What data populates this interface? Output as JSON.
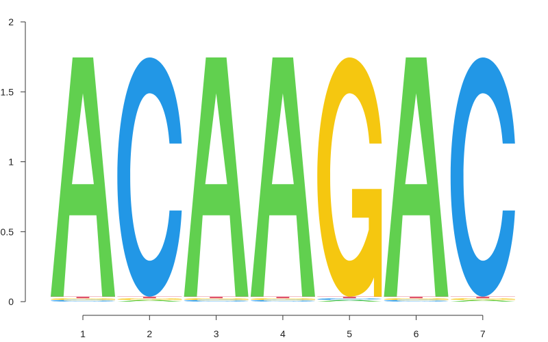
{
  "chart_data": {
    "type": "sequence-logo",
    "title": "",
    "xlabel": "",
    "ylabel": "",
    "ylim": [
      0,
      2
    ],
    "y_ticks": [
      "0",
      "0.5",
      "1",
      "1.5",
      "2"
    ],
    "positions": [
      "1",
      "2",
      "3",
      "4",
      "5",
      "6",
      "7"
    ],
    "consensus": [
      "A",
      "C",
      "A",
      "A",
      "G",
      "A",
      "C"
    ],
    "consensus_height": 1.71,
    "letter_colors": {
      "A": "#61d04f",
      "C": "#2297e6",
      "G": "#f5c710",
      "T": "#df536b"
    },
    "minor_letters": [
      [
        {
          "letter": "T",
          "height": 0.012
        },
        {
          "letter": "G",
          "height": 0.012
        },
        {
          "letter": "C",
          "height": 0.012
        }
      ],
      [
        {
          "letter": "T",
          "height": 0.012
        },
        {
          "letter": "G",
          "height": 0.012
        },
        {
          "letter": "A",
          "height": 0.012
        }
      ],
      [
        {
          "letter": "T",
          "height": 0.012
        },
        {
          "letter": "G",
          "height": 0.012
        },
        {
          "letter": "C",
          "height": 0.012
        }
      ],
      [
        {
          "letter": "T",
          "height": 0.012
        },
        {
          "letter": "G",
          "height": 0.012
        },
        {
          "letter": "C",
          "height": 0.012
        }
      ],
      [
        {
          "letter": "T",
          "height": 0.012
        },
        {
          "letter": "C",
          "height": 0.012
        },
        {
          "letter": "A",
          "height": 0.012
        }
      ],
      [
        {
          "letter": "T",
          "height": 0.012
        },
        {
          "letter": "G",
          "height": 0.012
        },
        {
          "letter": "C",
          "height": 0.012
        }
      ],
      [
        {
          "letter": "T",
          "height": 0.012
        },
        {
          "letter": "G",
          "height": 0.012
        },
        {
          "letter": "A",
          "height": 0.012
        }
      ]
    ]
  }
}
